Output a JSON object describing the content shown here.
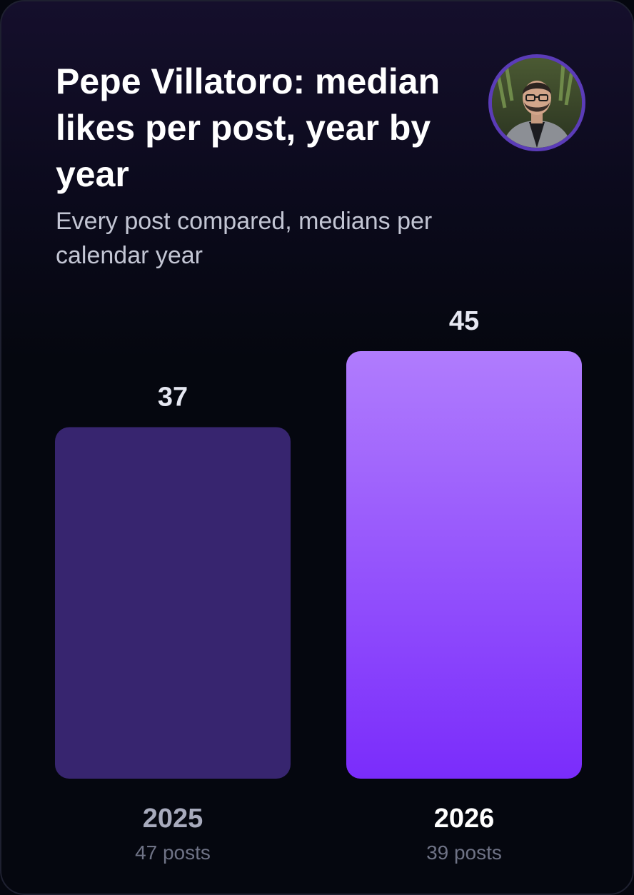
{
  "header": {
    "title": "Pepe Villatoro: median likes per post, year by year",
    "subtitle": "Every post compared, medians per calendar year",
    "avatar_icon": "profile-photo"
  },
  "colors": {
    "background": "#05070f",
    "bar_past": "#37256f",
    "bar_current_top": "#b07cfd",
    "bar_current_bottom": "#7a2cfb",
    "label_current": "#ffffff",
    "label_past": "#a8abbd"
  },
  "chart_data": {
    "type": "bar",
    "title": "Pepe Villatoro: median likes per post, year by year",
    "subtitle": "Every post compared, medians per calendar year",
    "categories": [
      "2025",
      "2026"
    ],
    "values": [
      37,
      45
    ],
    "value_labels": [
      "37",
      "45"
    ],
    "notes": [
      "47 posts",
      "39 posts"
    ],
    "highlight_index": 1,
    "ylim": [
      0,
      45
    ],
    "grid": false,
    "legend": "none"
  }
}
